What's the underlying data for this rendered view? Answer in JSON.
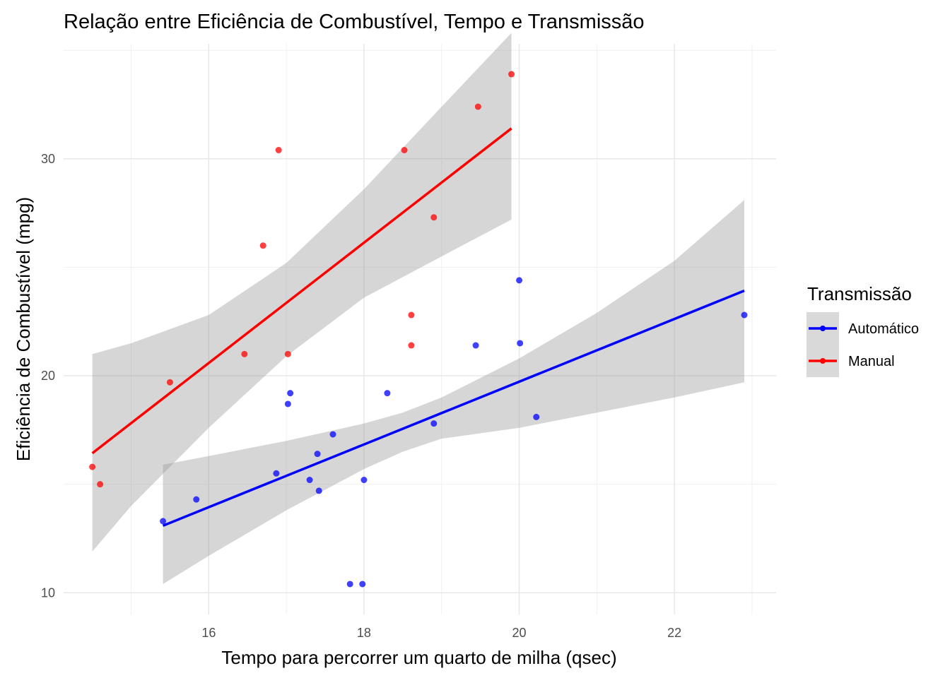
{
  "chart_data": {
    "type": "scatter",
    "title": "Relação entre Eficiência de Combustível, Tempo e Transmissão",
    "xlabel": "Tempo para percorrer um quarto de milha (qsec)",
    "ylabel": "Eficiência de Combustível (mpg)",
    "xlim": [
      14.13,
      23.31
    ],
    "ylim": [
      9.0,
      35.3
    ],
    "xticks": [
      16,
      18,
      20,
      22
    ],
    "yticks": [
      10,
      20,
      30
    ],
    "grid": true,
    "legend": {
      "title": "Transmissão",
      "position": "right"
    },
    "series": [
      {
        "name": "Automático",
        "color": "#0000ff",
        "points": [
          [
            15.41,
            13.3
          ],
          [
            15.84,
            14.3
          ],
          [
            16.87,
            15.5
          ],
          [
            17.02,
            18.7
          ],
          [
            17.05,
            19.2
          ],
          [
            17.3,
            15.2
          ],
          [
            17.4,
            16.4
          ],
          [
            17.42,
            14.7
          ],
          [
            17.6,
            17.3
          ],
          [
            17.82,
            10.4
          ],
          [
            17.98,
            10.4
          ],
          [
            18.0,
            15.2
          ],
          [
            18.3,
            19.2
          ],
          [
            18.9,
            17.8
          ],
          [
            19.44,
            21.4
          ],
          [
            20.0,
            24.4
          ],
          [
            20.01,
            21.5
          ],
          [
            20.22,
            18.1
          ],
          [
            22.9,
            22.8
          ]
        ],
        "fit": {
          "x": [
            15.41,
            22.9
          ],
          "y": [
            13.09,
            23.92
          ]
        },
        "band_upper": [
          [
            15.41,
            15.9
          ],
          [
            16.0,
            16.3
          ],
          [
            17.0,
            17.0
          ],
          [
            18.0,
            17.8
          ],
          [
            18.5,
            18.3
          ],
          [
            19.0,
            19.0
          ],
          [
            20.0,
            20.8
          ],
          [
            21.0,
            22.9
          ],
          [
            22.0,
            25.3
          ],
          [
            22.9,
            28.1
          ]
        ],
        "band_lower": [
          [
            15.41,
            10.4
          ],
          [
            16.0,
            11.7
          ],
          [
            17.0,
            13.8
          ],
          [
            18.0,
            15.7
          ],
          [
            18.5,
            16.5
          ],
          [
            19.0,
            17.1
          ],
          [
            20.0,
            17.6
          ],
          [
            21.0,
            18.3
          ],
          [
            22.0,
            19.0
          ],
          [
            22.9,
            19.7
          ]
        ]
      },
      {
        "name": "Manual",
        "color": "#ff0000",
        "points": [
          [
            14.5,
            15.8
          ],
          [
            14.6,
            15.0
          ],
          [
            15.5,
            19.7
          ],
          [
            16.46,
            21.0
          ],
          [
            16.7,
            26.0
          ],
          [
            16.9,
            30.4
          ],
          [
            17.02,
            21.0
          ],
          [
            18.52,
            30.4
          ],
          [
            18.61,
            22.8
          ],
          [
            18.61,
            21.4
          ],
          [
            18.9,
            27.3
          ],
          [
            19.47,
            32.4
          ],
          [
            19.9,
            33.9
          ]
        ],
        "fit": {
          "x": [
            14.5,
            19.9
          ],
          "y": [
            16.43,
            31.4
          ]
        },
        "band_upper": [
          [
            14.5,
            21.0
          ],
          [
            15.0,
            21.5
          ],
          [
            16.0,
            22.8
          ],
          [
            17.0,
            25.2
          ],
          [
            18.0,
            28.6
          ],
          [
            19.0,
            32.4
          ],
          [
            19.9,
            35.8
          ]
        ],
        "band_lower": [
          [
            14.5,
            11.9
          ],
          [
            15.0,
            14.0
          ],
          [
            16.0,
            17.6
          ],
          [
            17.0,
            20.9
          ],
          [
            18.0,
            23.6
          ],
          [
            19.0,
            25.5
          ],
          [
            19.9,
            27.2
          ]
        ]
      }
    ]
  }
}
